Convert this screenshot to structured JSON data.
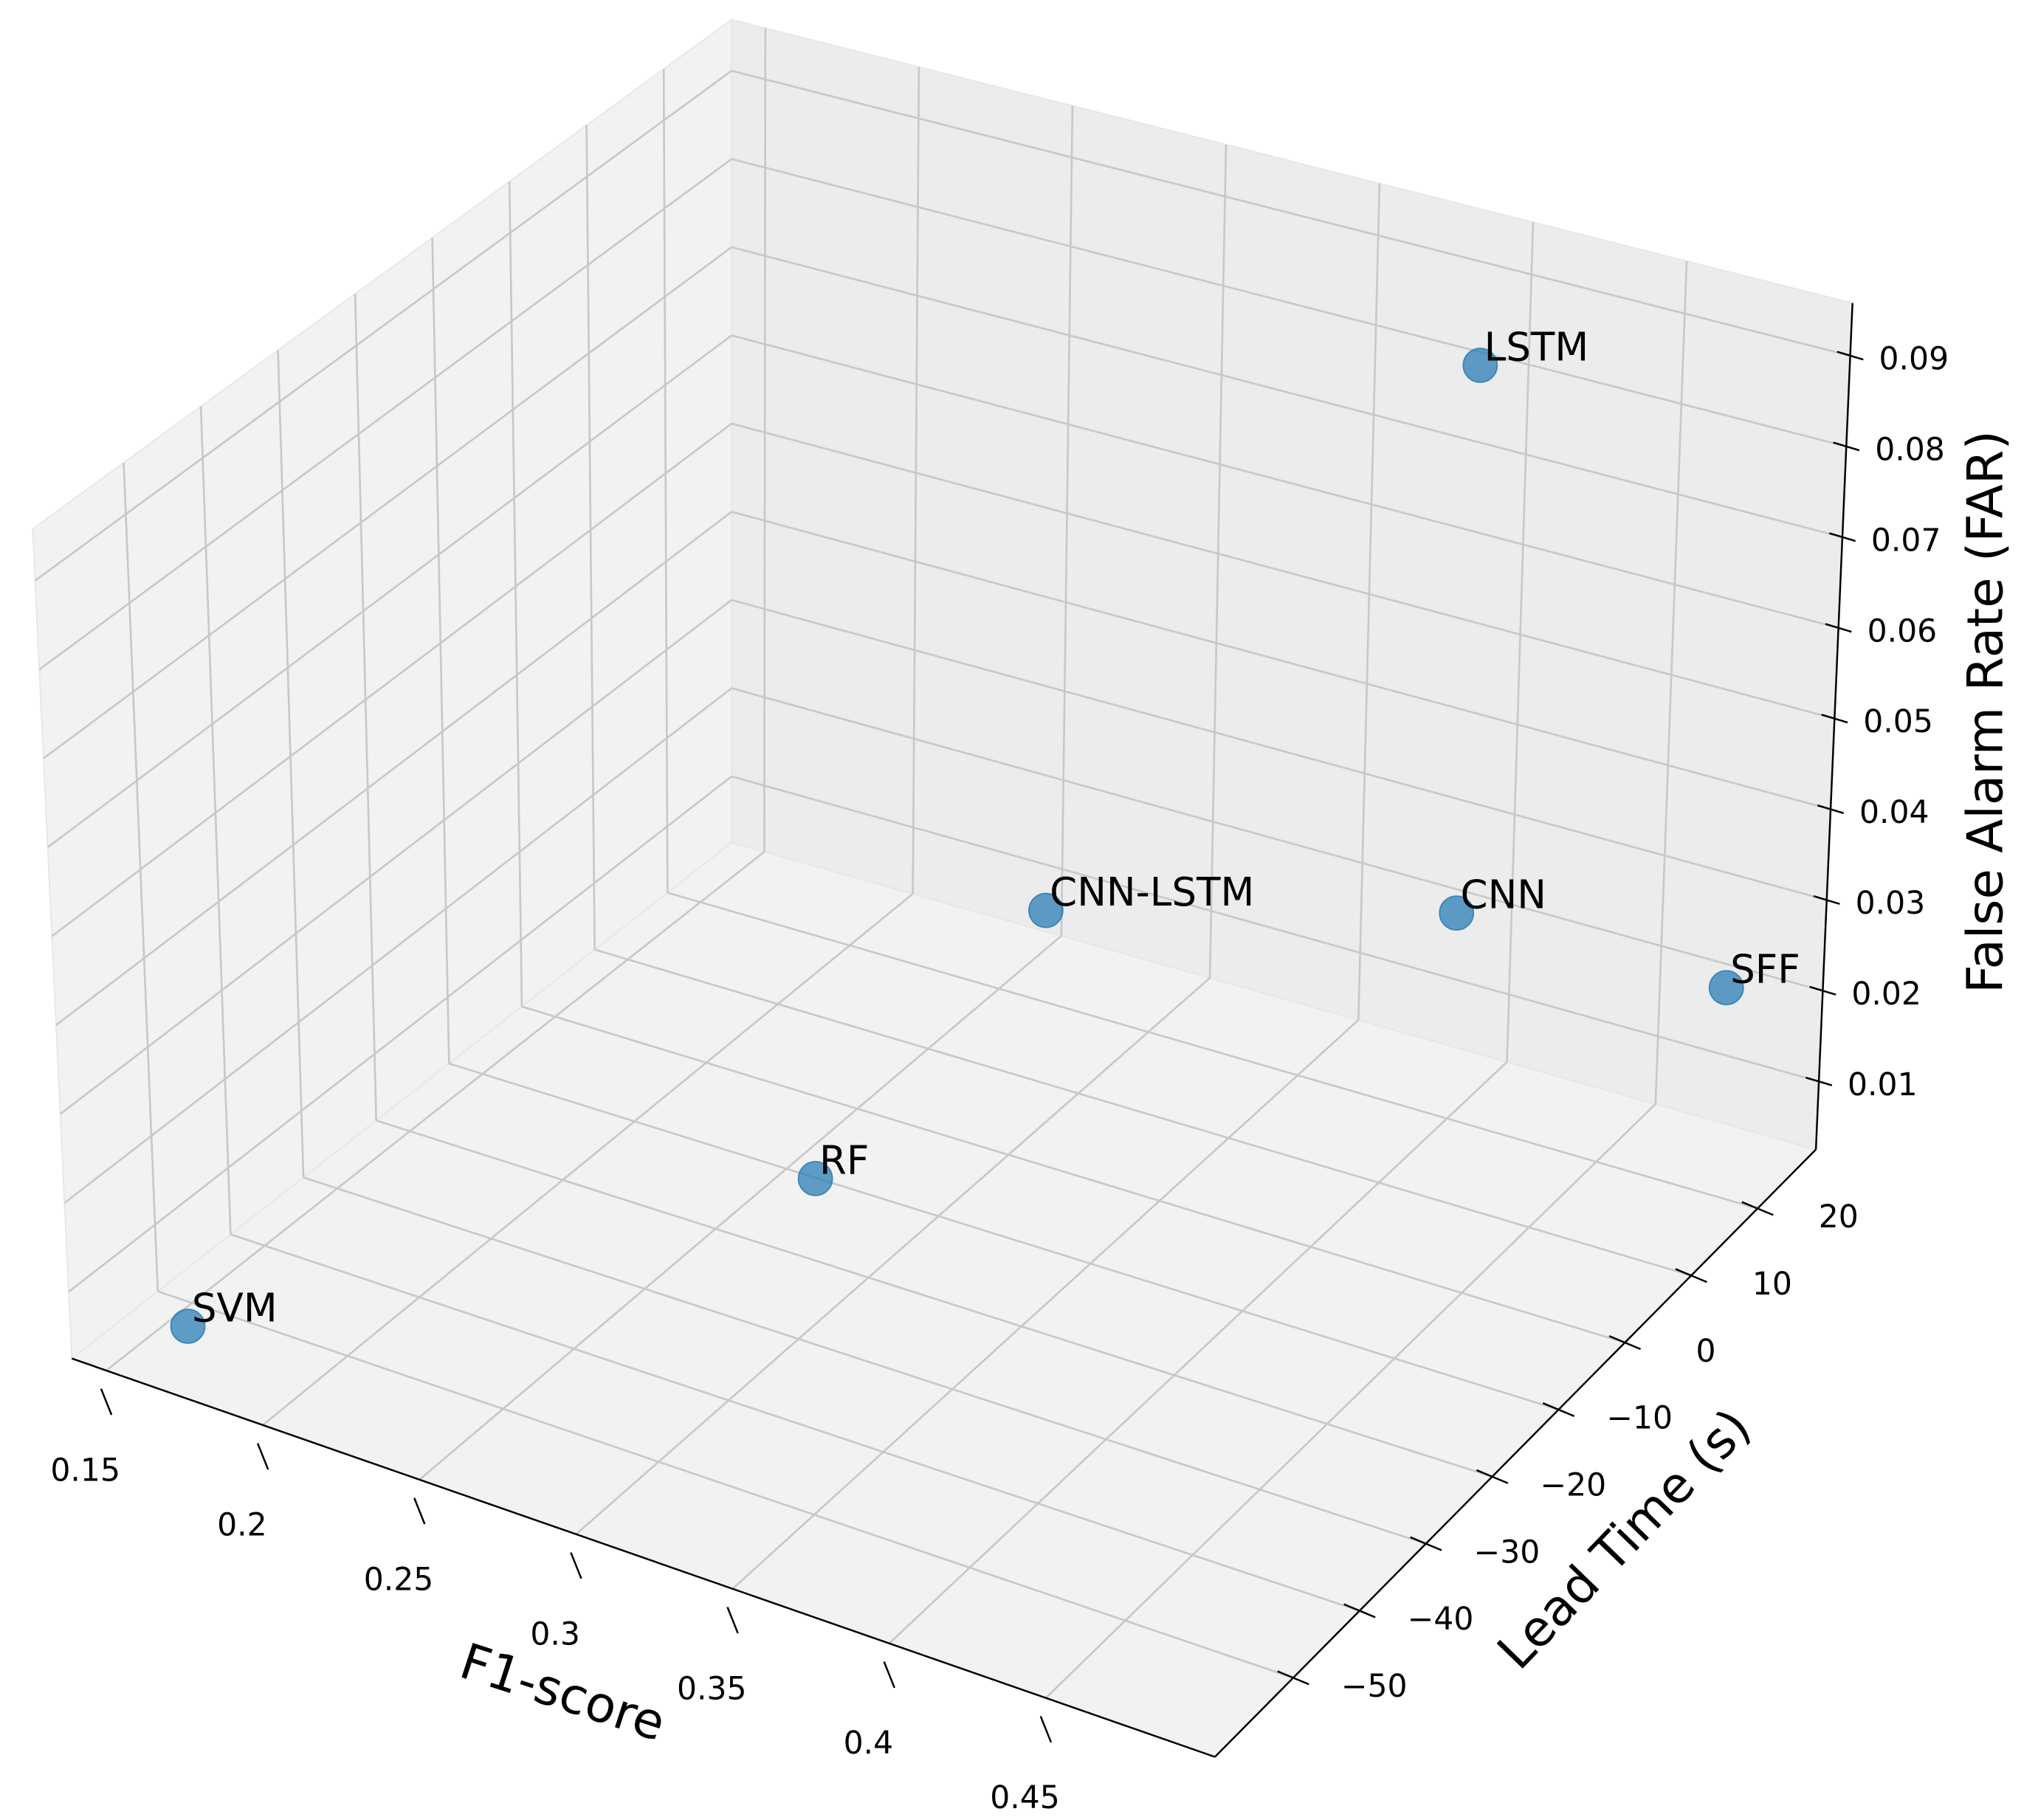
{
  "chart_data": {
    "type": "scatter3d",
    "labels": [
      "SVM",
      "RF",
      "CNN-LSTM",
      "CNN",
      "SFF",
      "LSTM"
    ],
    "x": [
      0.175,
      0.303,
      0.309,
      0.412,
      0.478,
      0.412
    ],
    "y": [
      -61,
      -29,
      1,
      15,
      26,
      16
    ],
    "z": [
      0.01,
      0.02,
      0.03,
      0.03,
      0.02,
      0.09
    ],
    "color": "#1f77b4",
    "xlabel": "F1-score",
    "ylabel": "Lead Time (s)",
    "zlabel": "False Alarm Rate (FAR)",
    "xlim": [
      0.139,
      0.504
    ],
    "ylim": [
      -61.8,
      28.8
    ],
    "zlim": [
      0.0025,
      0.0958
    ],
    "xticks": [
      0.15,
      0.2,
      0.25,
      0.3,
      0.35,
      0.4,
      0.45
    ],
    "yticks": [
      {
        "value": -50,
        "label": "−50"
      },
      {
        "value": -40,
        "label": "−40"
      },
      {
        "value": -30,
        "label": "−30"
      },
      {
        "value": -20,
        "label": "−20"
      },
      {
        "value": -10,
        "label": "−10"
      },
      0,
      10,
      20
    ],
    "zticks": [
      0.01,
      0.02,
      0.03,
      0.04,
      0.05,
      0.06,
      0.07,
      0.08,
      0.09
    ],
    "grid": true
  }
}
